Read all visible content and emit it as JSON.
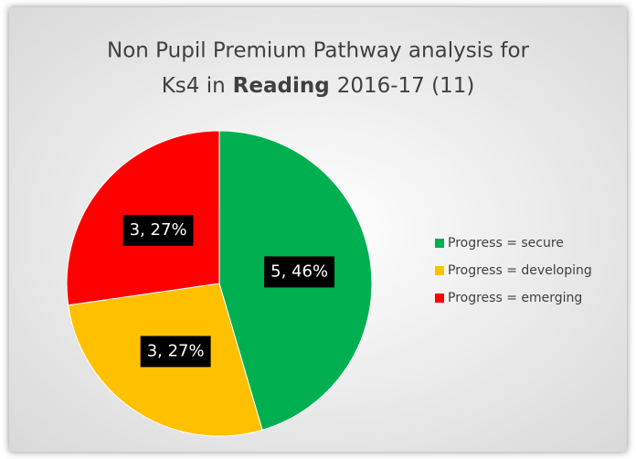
{
  "chart_data": {
    "type": "pie",
    "title": [
      "Non Pupil Premium Pathway analysis for",
      "Ks4  in",
      "Reading",
      "2016-17 (11)"
    ],
    "categories": [
      "Progress =  secure",
      "Progress = developing",
      "Progress = emerging"
    ],
    "values": [
      5,
      3,
      3
    ],
    "value_labels": [
      "5, 46%",
      "3, 27%",
      "3, 27%"
    ],
    "colors": [
      "#00b050",
      "#ffc000",
      "#ff0000"
    ],
    "legend": "right"
  }
}
